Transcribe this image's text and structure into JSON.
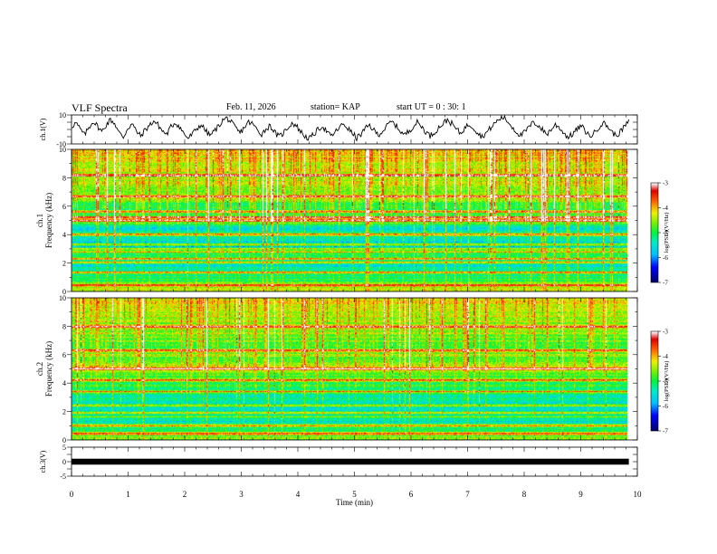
{
  "header": {
    "title": "VLF Spectra",
    "date": "Feb. 11, 2026",
    "station": "station= KAP",
    "start": "start UT = 0 : 30: 1"
  },
  "chart_data": [
    {
      "type": "line",
      "name": "ch1-waveform",
      "ylabel": "ch.1(V)",
      "ylim": [
        -10,
        10
      ],
      "yticks": [
        10,
        -10
      ],
      "xlim": [
        0,
        10
      ],
      "series": [
        {
          "name": "ch.1",
          "x_end": 9.85,
          "values": [
            2.1,
            4.5,
            0.3,
            -3.8,
            1.2,
            5.6,
            2.4,
            -1.6,
            3.1,
            6.8,
            4.2,
            -2.3,
            -5.4,
            0.8,
            3.9,
            -1.1,
            -4.7,
            -0.5,
            2.6,
            5.9,
            3.3,
            -0.9,
            -3.5,
            1.7,
            4.8,
            2.0,
            -2.9,
            -6.1,
            -3.2,
            0.6,
            3.4,
            -0.7,
            -4.2,
            -1.4,
            2.2,
            6.3,
            7.9,
            4.6,
            0.9,
            -2.5,
            1.5,
            5.1,
            3.6,
            -0.4,
            -3.1,
            0.2,
            2.8,
            -1.9,
            -5.2,
            -2.6,
            1.1,
            4.4,
            2.7,
            -1.3,
            -4.6,
            -6.4,
            -3.7,
            -0.3,
            2.5,
            -1.0,
            -4.9,
            -2.1,
            1.4,
            3.8,
            0.7,
            -2.8,
            -5.8,
            -3.4,
            0.4,
            2.9,
            -0.8,
            -3.6,
            -1.2,
            2.3,
            5.4,
            3.0,
            -0.6,
            -3.9,
            -1.5,
            1.9,
            4.9,
            2.2,
            -1.7,
            -4.4,
            -2.0,
            1.3,
            4.1,
            6.6,
            4.0,
            0.5,
            -2.7,
            0.9,
            3.7,
            1.6,
            -2.2,
            -5.0,
            -2.4,
            1.0,
            4.3,
            7.2,
            8.4,
            5.3,
            1.8,
            -1.8,
            -4.1,
            -1.6,
            2.0,
            5.0,
            2.9,
            -0.2,
            -3.3,
            -0.1,
            3.2,
            1.2,
            -2.6,
            -5.5,
            -3.0,
            0.1,
            2.4,
            -1.4,
            -4.8,
            -2.3,
            1.5,
            4.6,
            2.5,
            -1.5,
            -4.3,
            -1.8,
            2.1,
            5.2
          ]
        }
      ]
    },
    {
      "type": "heatmap",
      "name": "ch1-spectrogram",
      "ylabel": "Frequency (kHz)",
      "channel_label": "ch.1",
      "ylim": [
        0,
        10
      ],
      "yticks": [
        0,
        2,
        4,
        6,
        8,
        10
      ],
      "xlim": [
        0,
        10
      ],
      "colorbar": {
        "label": "log(PSD)(V²/Hz)",
        "ticks": [
          -3,
          -4,
          -5,
          -6,
          -7
        ],
        "range": [
          -7,
          -3
        ]
      },
      "band_levels": {
        "freq_khz": [
          0.0,
          0.5,
          1.0,
          1.5,
          2.0,
          2.5,
          3.0,
          3.5,
          4.0,
          4.5,
          5.0,
          5.5,
          6.0,
          6.5,
          7.0,
          7.5,
          8.0,
          8.5,
          9.0,
          9.5,
          10.0
        ],
        "log_psd": [
          -4.3,
          -4.8,
          -5.1,
          -5.4,
          -5.5,
          -5.1,
          -5.8,
          -5.6,
          -5.3,
          -5.6,
          -4.3,
          -5.2,
          -4.9,
          -4.7,
          -4.7,
          -4.6,
          -4.5,
          -4.4,
          -4.3,
          -4.2,
          -4.1
        ]
      },
      "lines_khz": [
        0.4,
        1.3,
        2.0,
        2.3,
        2.8,
        3.0,
        3.3,
        4.0,
        5.0,
        5.2,
        5.6,
        6.7,
        8.2
      ],
      "sferic_density": 0.36
    },
    {
      "type": "heatmap",
      "name": "ch2-spectrogram",
      "ylabel": "Frequency (kHz)",
      "channel_label": "ch.2",
      "ylim": [
        0,
        10
      ],
      "yticks": [
        0,
        2,
        4,
        6,
        8,
        10
      ],
      "xlim": [
        0,
        10
      ],
      "colorbar": {
        "label": "log(PSD)(V²/Hz)",
        "ticks": [
          -3,
          -4,
          -5,
          -6,
          -7
        ],
        "range": [
          -7,
          -3
        ]
      },
      "band_levels": {
        "freq_khz": [
          0.0,
          0.5,
          1.0,
          1.5,
          2.0,
          2.5,
          3.0,
          3.5,
          4.0,
          4.5,
          5.0,
          5.5,
          6.0,
          6.5,
          7.0,
          7.5,
          8.0,
          8.5,
          9.0,
          9.5,
          10.0
        ],
        "log_psd": [
          -4.6,
          -4.9,
          -5.3,
          -5.6,
          -5.5,
          -5.7,
          -5.3,
          -5.1,
          -5.0,
          -4.9,
          -4.2,
          -4.7,
          -4.6,
          -4.8,
          -4.7,
          -4.6,
          -4.5,
          -4.5,
          -4.4,
          -4.3,
          -4.3
        ]
      },
      "lines_khz": [
        0.4,
        1.0,
        1.6,
        1.9,
        2.4,
        3.4,
        4.2,
        5.0,
        6.3,
        8.0
      ],
      "sferic_density": 0.26
    },
    {
      "type": "line",
      "name": "ch3-waveform",
      "ylabel": "ch.3(V)",
      "ylim": [
        -5,
        5
      ],
      "yticks": [
        5,
        0,
        -5
      ],
      "xlim": [
        0,
        10
      ],
      "series": [
        {
          "name": "ch.3",
          "x_end": 9.85,
          "band": [
            -0.4,
            0.4
          ]
        }
      ]
    }
  ],
  "xaxis": {
    "label": "Time (min)",
    "ticks": [
      "0",
      "1",
      "2",
      "3",
      "4",
      "5",
      "6",
      "7",
      "8",
      "9",
      "10"
    ]
  }
}
